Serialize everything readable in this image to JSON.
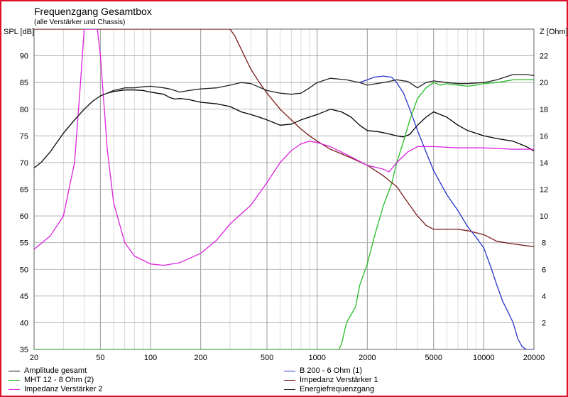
{
  "chart_data": {
    "type": "line",
    "title": "Frequenzgang Gesamtbox",
    "subtitle": "(alle Verstärker und Chassis)",
    "ylabel": "SPL [dB]",
    "y2label": "Z [Ohm]",
    "xscale": "log",
    "xlim": [
      20,
      20000
    ],
    "ylim": [
      35,
      95
    ],
    "y2lim": [
      0,
      24
    ],
    "xticks": [
      20,
      50,
      100,
      200,
      500,
      1000,
      2000,
      5000,
      10000,
      20000
    ],
    "xtick_labels": [
      "20",
      "50",
      "100",
      "200",
      "500",
      "1000",
      "2000",
      "5000",
      "10000",
      "20000"
    ],
    "yticks": [
      35,
      40,
      45,
      50,
      55,
      60,
      65,
      70,
      75,
      80,
      85,
      90
    ],
    "y2ticks": [
      2,
      4,
      6,
      8,
      10,
      12,
      14,
      16,
      18,
      20,
      22
    ],
    "grid": true,
    "legend_position": "bottom",
    "series": [
      {
        "name": "Amplitude gesamt",
        "axis": "spl",
        "color": "#000000",
        "x": [
          20,
          22,
          25,
          30,
          35,
          40,
          45,
          50,
          55,
          60,
          70,
          80,
          90,
          100,
          120,
          130,
          140,
          150,
          170,
          200,
          250,
          300,
          350,
          400,
          450,
          500,
          600,
          700,
          800,
          1000,
          1200,
          1400,
          1600,
          1800,
          2000,
          2300,
          2600,
          3000,
          3300,
          3600,
          4000,
          4500,
          5000,
          6000,
          7000,
          8000,
          10000,
          12000,
          15000,
          18000,
          20000
        ],
        "y": [
          69,
          70,
          72,
          75.5,
          78,
          80,
          81.5,
          82.5,
          83,
          83.3,
          83.6,
          83.6,
          83.5,
          83.2,
          82.8,
          82.2,
          81.9,
          82,
          81.8,
          81.3,
          81,
          80.5,
          79.5,
          79,
          78.5,
          78,
          77,
          77.2,
          78,
          79,
          80,
          79.5,
          78.5,
          77,
          76,
          75.8,
          75.5,
          75,
          74.8,
          75.3,
          77,
          78.5,
          79.5,
          78.5,
          77,
          76,
          75,
          74.5,
          74,
          73,
          72.2
        ]
      },
      {
        "name": "B 200 - 6 Ohm (1)",
        "axis": "spl",
        "color": "#2233cc",
        "x": [
          1800,
          2000,
          2200,
          2500,
          2800,
          3000,
          3300,
          3600,
          4000,
          4500,
          5000,
          6000,
          7000,
          8000,
          9000,
          10000,
          11000,
          12000,
          13000,
          14000,
          15000,
          16000,
          17000,
          18000,
          20000
        ],
        "y": [
          85,
          85.5,
          86,
          86.2,
          86,
          85,
          83,
          80,
          76,
          72,
          68.5,
          64,
          61,
          58,
          56,
          54,
          50.5,
          47,
          44,
          42,
          40,
          37,
          35.5,
          35,
          35
        ]
      },
      {
        "name": "MHT 12 - 8 Ohm (2)",
        "axis": "spl",
        "color": "#22bb22",
        "x": [
          20,
          1350,
          1400,
          1500,
          1700,
          1800,
          2000,
          2200,
          2500,
          2800,
          3000,
          3300,
          3600,
          4000,
          4500,
          5000,
          5500,
          6000,
          6500,
          7000,
          8000,
          9000,
          10000,
          12000,
          15000,
          18000,
          20000
        ],
        "y": [
          35,
          35,
          36,
          40,
          43,
          47,
          51,
          56,
          62,
          66,
          70,
          74,
          78,
          82,
          84,
          85,
          84.5,
          84.8,
          84.6,
          84.5,
          84.3,
          84.5,
          84.8,
          85,
          85.5,
          85.5,
          85.5
        ]
      },
      {
        "name": "Impedanz Verstärker 1",
        "axis": "impedance",
        "color": "#7a1a1a",
        "x": [
          20,
          300,
          320,
          350,
          400,
          450,
          500,
          600,
          700,
          800,
          900,
          1000,
          1200,
          1500,
          2000,
          2500,
          3000,
          3500,
          4000,
          4500,
          5000,
          6000,
          7000,
          8000,
          10000,
          12000,
          15000,
          20000
        ],
        "y": [
          24,
          24,
          23.5,
          22.5,
          21,
          20,
          19.2,
          18,
          17.2,
          16.5,
          16,
          15.6,
          15,
          14.5,
          13.8,
          13,
          12.2,
          11,
          10,
          9.3,
          9,
          9,
          9,
          8.9,
          8.6,
          8.1,
          7.9,
          7.7
        ]
      },
      {
        "name": "Impedanz Verstärker 2",
        "axis": "impedance",
        "color": "#dd22dd",
        "x": [
          20,
          25,
          30,
          35,
          38,
          40,
          42,
          45,
          48,
          50,
          55,
          60,
          70,
          80,
          100,
          120,
          150,
          200,
          250,
          300,
          400,
          500,
          600,
          700,
          800,
          900,
          1000,
          1200,
          1500,
          2000,
          2500,
          2700,
          3000,
          3500,
          4000,
          4500,
          5000,
          7000,
          10000,
          15000,
          20000
        ],
        "y": [
          7.5,
          8.5,
          10,
          14,
          20,
          24,
          24,
          24,
          24,
          22,
          15,
          11,
          8,
          7,
          6.4,
          6.3,
          6.5,
          7.2,
          8.2,
          9.4,
          10.8,
          12.5,
          14,
          14.9,
          15.4,
          15.6,
          15.5,
          15.2,
          14.6,
          13.8,
          13.5,
          13.3,
          14,
          14.8,
          15.2,
          15.2,
          15.2,
          15.1,
          15.1,
          15,
          15
        ]
      },
      {
        "name": "Energiefrequenzgang",
        "axis": "spl",
        "color": "#222222",
        "x": [
          20,
          22,
          25,
          30,
          35,
          40,
          45,
          50,
          55,
          60,
          70,
          80,
          90,
          100,
          120,
          130,
          140,
          150,
          170,
          200,
          250,
          300,
          350,
          400,
          500,
          600,
          700,
          800,
          900,
          1000,
          1200,
          1500,
          1800,
          2000,
          2500,
          3000,
          3500,
          4000,
          4500,
          5000,
          6000,
          7000,
          8000,
          10000,
          12000,
          15000,
          18000,
          20000
        ],
        "y": [
          69,
          70,
          72,
          75.5,
          78,
          80,
          81.5,
          82.5,
          83,
          83.5,
          84,
          84,
          84.2,
          84.3,
          84,
          83.8,
          83.5,
          83.2,
          83.5,
          83.8,
          84,
          84.5,
          85,
          84.8,
          83.5,
          83,
          82.8,
          83,
          84,
          85,
          85.8,
          85.5,
          85,
          84.5,
          85,
          85.5,
          85.2,
          84,
          85,
          85.3,
          85,
          84.8,
          84.8,
          85,
          85.5,
          86.5,
          86.5,
          86.3
        ]
      }
    ]
  }
}
